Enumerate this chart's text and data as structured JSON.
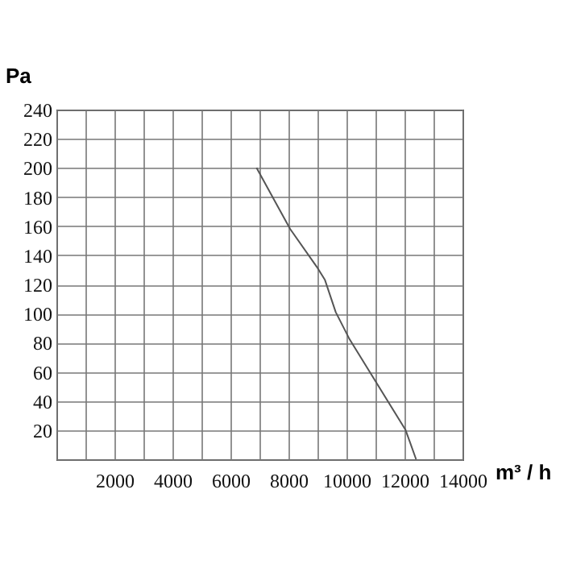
{
  "chart_data": {
    "type": "line",
    "xlabel": "m³ / h",
    "ylabel": "Pa",
    "x": [
      6900,
      8060,
      8980,
      9260,
      9630,
      10090,
      11020,
      12040,
      12400
    ],
    "series": [
      {
        "color": "#555555",
        "values": [
          200,
          158,
          132,
          123,
          101,
          83,
          53,
          20,
          0
        ]
      }
    ],
    "xlim": [
      0,
      14000
    ],
    "ylim": [
      0,
      240
    ],
    "xticks": [
      {
        "value": 0,
        "label": null
      },
      {
        "value": 1000,
        "label": null
      },
      2000,
      {
        "value": 3000,
        "label": null
      },
      4000,
      {
        "value": 5000,
        "label": null
      },
      6000,
      {
        "value": 7000,
        "label": null
      },
      8000,
      {
        "value": 9000,
        "label": null
      },
      10000,
      {
        "value": 11000,
        "label": null
      },
      12000,
      {
        "value": 13000,
        "label": null
      },
      14000
    ],
    "yticks": [
      {
        "value": 0,
        "label": null
      },
      20,
      40,
      60,
      80,
      100,
      120,
      140,
      160,
      180,
      200,
      220,
      240
    ],
    "grid": true,
    "legend": false,
    "marker": "none",
    "line_style": "solid"
  }
}
